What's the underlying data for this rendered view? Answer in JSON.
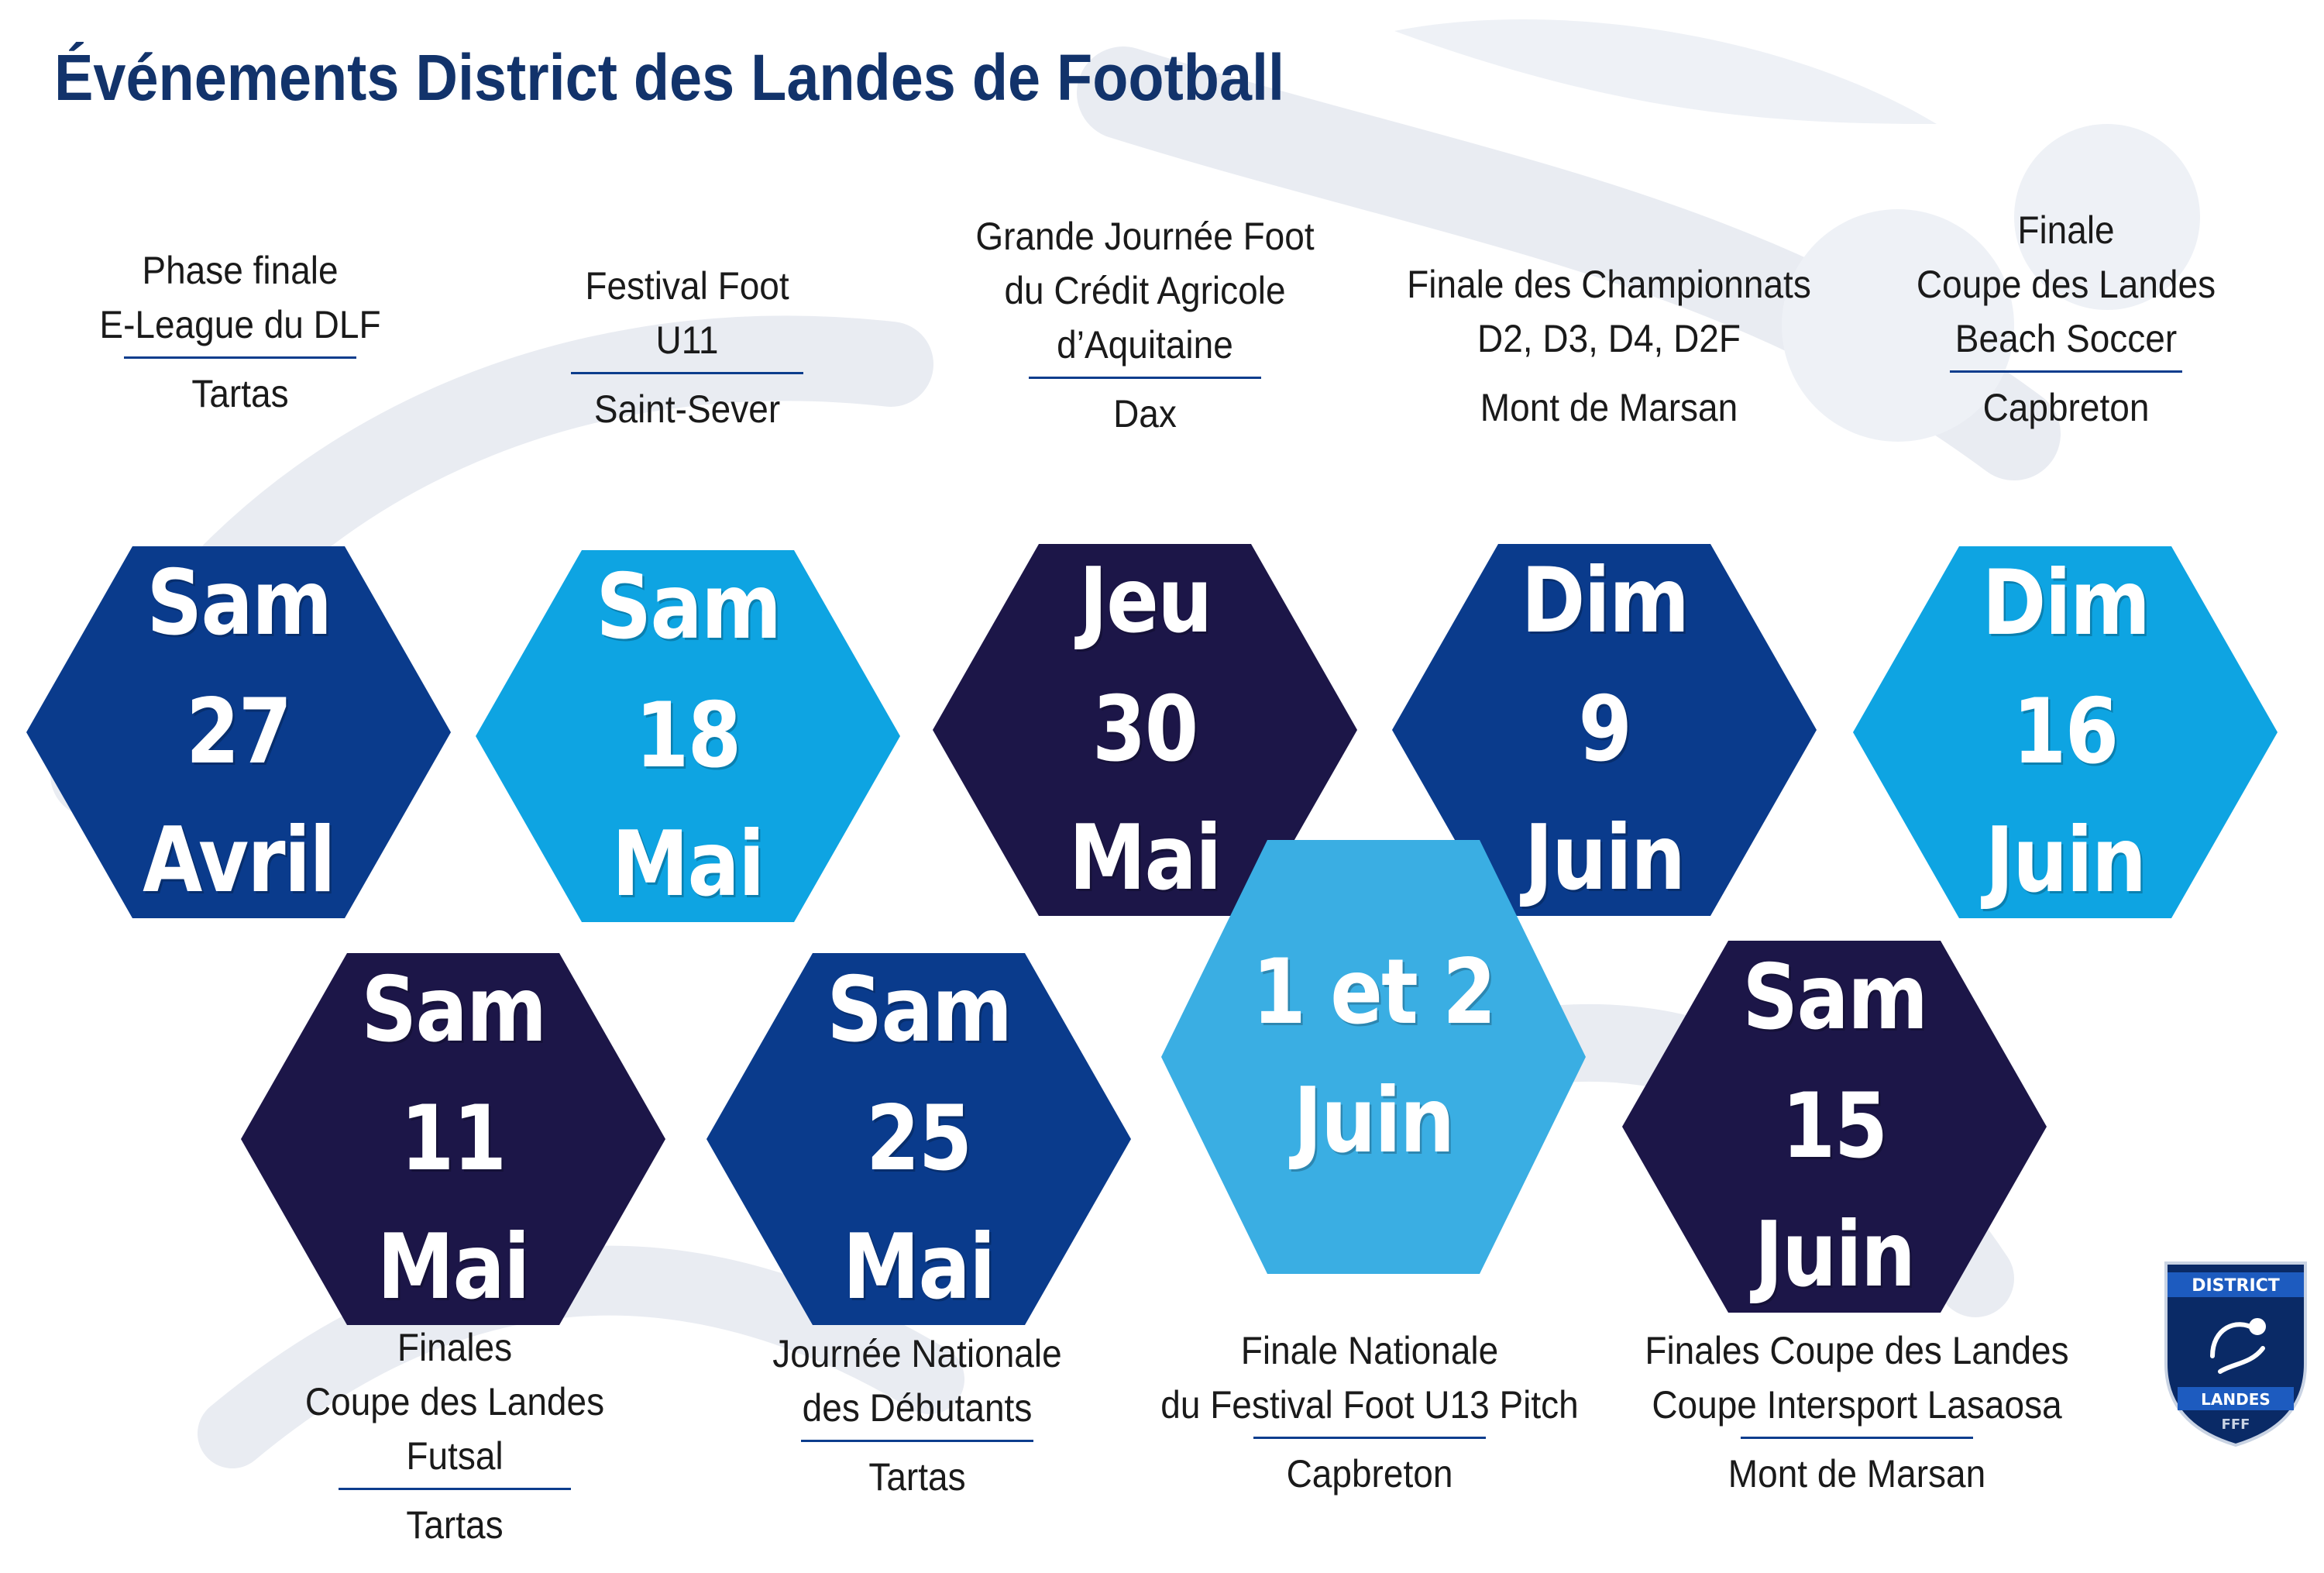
{
  "title": "Événements District des Landes de Football",
  "events": [
    {
      "id": "e1",
      "color": "royal",
      "day": "Sam",
      "date": "27",
      "month": "Avril",
      "lines": [
        "Phase finale",
        "E-League du DLF"
      ],
      "venue": "Tartas"
    },
    {
      "id": "e2",
      "color": "sky",
      "day": "Sam",
      "date": "18",
      "month": "Mai",
      "lines": [
        "Festival Foot",
        "U11"
      ],
      "venue": "Saint-Sever"
    },
    {
      "id": "e3",
      "color": "night",
      "day": "Jeu",
      "date": "30",
      "month": "Mai",
      "lines": [
        "Grande Journée Foot",
        "du Crédit Agricole",
        "d’Aquitaine"
      ],
      "venue": "Dax"
    },
    {
      "id": "e4",
      "color": "royal",
      "day": "Dim",
      "date": "9",
      "month": "Juin",
      "lines": [
        "Finale des Championnats",
        "D2, D3, D4, D2F"
      ],
      "venue": "Mont de Marsan"
    },
    {
      "id": "e5",
      "color": "sky",
      "day": "Dim",
      "date": "16",
      "month": "Juin",
      "lines": [
        "Finale",
        "Coupe des Landes",
        "Beach Soccer"
      ],
      "venue": "Capbreton"
    },
    {
      "id": "e6",
      "color": "night",
      "day": "Sam",
      "date": "11",
      "month": "Mai",
      "lines": [
        "Finales",
        "Coupe des Landes",
        "Futsal"
      ],
      "venue": "Tartas"
    },
    {
      "id": "e7",
      "color": "royal",
      "day": "Sam",
      "date": "25",
      "month": "Mai",
      "lines": [
        "Journée Nationale",
        "des Débutants"
      ],
      "venue": "Tartas"
    },
    {
      "id": "e8",
      "color": "light",
      "day": "1 et 2",
      "date": "",
      "month": "Juin",
      "lines": [
        "Finale Nationale",
        "du Festival Foot U13 Pitch"
      ],
      "venue": "Capbreton"
    },
    {
      "id": "e9",
      "color": "night",
      "day": "Sam",
      "date": "15",
      "month": "Juin",
      "lines": [
        "Finales Coupe des Landes",
        "Coupe Intersport Lasaosa"
      ],
      "venue": "Mont de Marsan"
    }
  ],
  "logo": {
    "top_text": "DISTRICT",
    "bottom_text": "LANDES",
    "mark": "FFF",
    "icon": "rooster-crest-icon"
  }
}
